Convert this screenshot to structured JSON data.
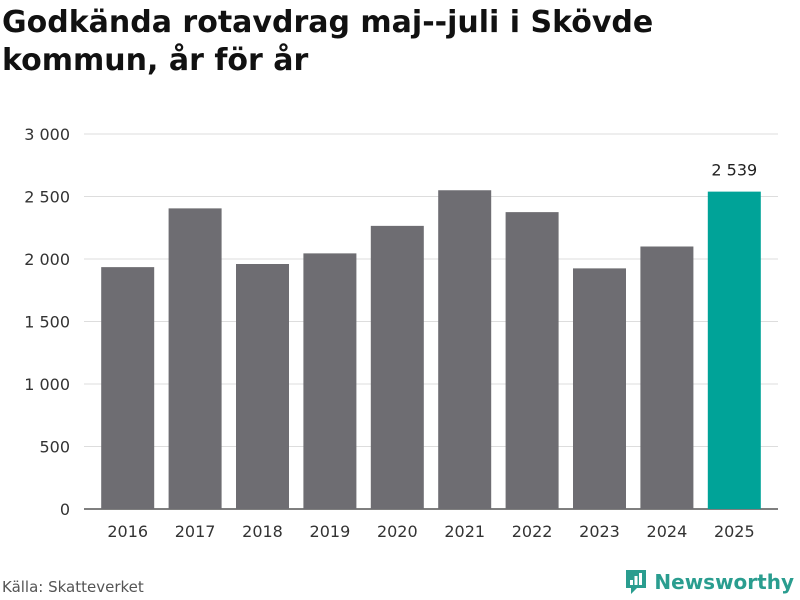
{
  "chart_data": {
    "type": "bar",
    "title": "Godkända rotavdrag maj--juli i Skövde kommun, år för år",
    "categories": [
      "2016",
      "2017",
      "2018",
      "2019",
      "2020",
      "2021",
      "2022",
      "2023",
      "2024",
      "2025"
    ],
    "values": [
      1935,
      2405,
      1960,
      2045,
      2265,
      2550,
      2375,
      1925,
      2100,
      2539
    ],
    "yticks": [
      "0",
      "500",
      "1 000",
      "1 500",
      "2 000",
      "2 500",
      "3 000"
    ],
    "ylim": [
      0,
      3000
    ],
    "grid": true,
    "bar_color": "#6e6d72",
    "highlight_color": "#00a398",
    "highlight_index": 9,
    "highlight_label": "2 539"
  },
  "footer": {
    "source": "Källa: Skatteverket",
    "brand": "Newsworthy",
    "brand_color": "#2a9d8f"
  }
}
